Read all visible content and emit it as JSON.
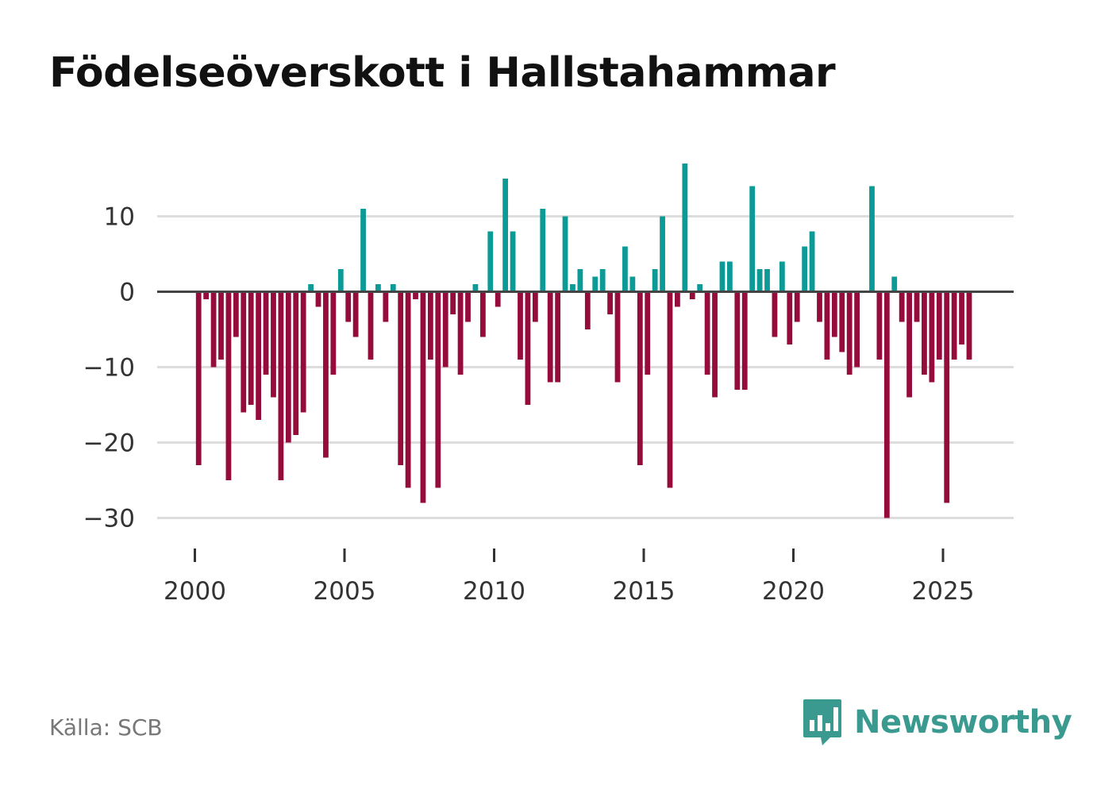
{
  "title": "Födelseöverskott i Hallstahammar",
  "source": "Källa: SCB",
  "brand": {
    "name": "Newsworthy",
    "icon": "newsworthy-logo-icon"
  },
  "colors": {
    "positive": "#0c9a96",
    "negative": "#950b3c",
    "zero_line": "#444444",
    "grid": "#dddddd",
    "brand": "#3a9a90"
  },
  "chart_data": {
    "type": "bar",
    "title": "Födelseöverskott i Hallstahammar",
    "xlabel": "",
    "ylabel": "",
    "frequency": "quarterly",
    "start": 2000.0,
    "xlim": [
      1999,
      2027.5
    ],
    "ylim": [
      -35,
      17
    ],
    "x_ticks": [
      2000,
      2005,
      2010,
      2015,
      2020,
      2025
    ],
    "x_tick_labels": [
      "2000",
      "2005",
      "2010",
      "2015",
      "2020",
      "2025"
    ],
    "y_ticks": [
      10,
      0,
      -10,
      -20,
      -30
    ],
    "y_tick_labels": [
      "10",
      "0",
      "−10",
      "−20",
      "−30"
    ],
    "grid": true,
    "values": [
      -23,
      -1,
      -10,
      -9,
      -25,
      -6,
      -16,
      -15,
      -17,
      -11,
      -14,
      -25,
      -20,
      -19,
      -16,
      1,
      -2,
      -22,
      -11,
      3,
      -4,
      -6,
      11,
      -9,
      1,
      -4,
      1,
      -23,
      -26,
      -1,
      -28,
      -9,
      -26,
      -10,
      -3,
      -11,
      -4,
      1,
      -6,
      8,
      -2,
      15,
      8,
      -9,
      -15,
      -4,
      11,
      -12,
      -12,
      10,
      1,
      3,
      -5,
      2,
      3,
      -3,
      -12,
      6,
      2,
      -23,
      -11,
      3,
      10,
      -26,
      -2,
      17,
      -1,
      1,
      -11,
      -14,
      4,
      4,
      -13,
      -13,
      14,
      3,
      3,
      -6,
      4,
      -7,
      -4,
      6,
      8,
      -4,
      -9,
      -6,
      -8,
      -11,
      -10,
      0,
      14,
      -9,
      -30,
      2,
      -4,
      -14,
      -4,
      -11,
      -12,
      -9,
      -28,
      -9,
      -7,
      -9
    ]
  }
}
